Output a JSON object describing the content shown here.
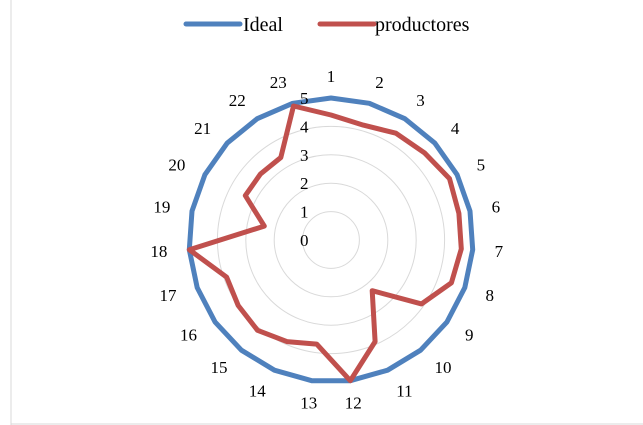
{
  "chart_data": {
    "type": "radar",
    "categories": [
      "1",
      "2",
      "3",
      "4",
      "5",
      "6",
      "7",
      "8",
      "9",
      "10",
      "11",
      "12",
      "13",
      "14",
      "15",
      "16",
      "17",
      "18",
      "19",
      "20",
      "21",
      "22",
      "23"
    ],
    "r_ticks": [
      "0",
      "1",
      "2",
      "3",
      "4",
      "5"
    ],
    "rlim": [
      0,
      5
    ],
    "legend_position": "top",
    "grid": true,
    "series": [
      {
        "name": "Ideal",
        "color": "#4f81bd",
        "values": [
          5,
          5,
          5,
          5,
          5,
          5,
          5,
          5,
          5,
          5,
          5,
          5,
          5,
          5,
          5,
          5,
          5,
          5,
          5,
          5,
          5,
          5,
          5
        ]
      },
      {
        "name": "productores",
        "color": "#c0504d",
        "values": [
          4.4,
          4.2,
          4.4,
          4.5,
          4.7,
          4.6,
          4.6,
          4.5,
          3.9,
          2.3,
          3.9,
          5,
          3.7,
          3.9,
          4.1,
          4.0,
          3.9,
          5,
          2.4,
          3.4,
          3.4,
          3.4,
          4.9
        ]
      }
    ]
  }
}
